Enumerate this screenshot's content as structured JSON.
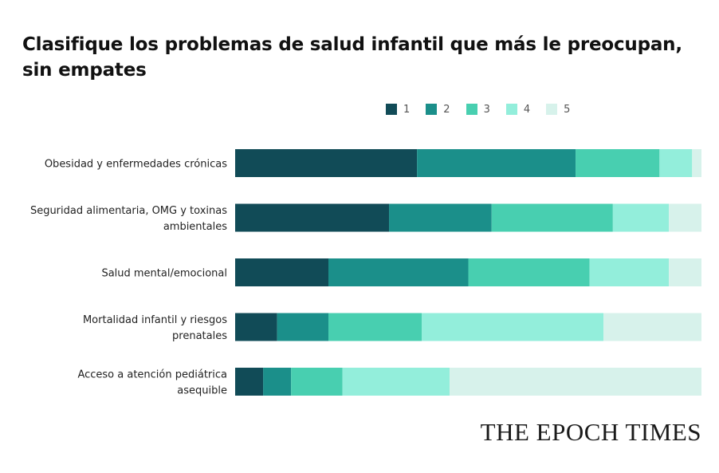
{
  "chart_data": {
    "type": "bar",
    "orientation": "horizontal",
    "stacked": true,
    "title": "Clasifique los problemas de salud infantil que más le preocupan, sin empates",
    "xlabel": "",
    "ylabel": "",
    "xlim": [
      0,
      100
    ],
    "grid": false,
    "legend_position": "top",
    "categories": [
      [
        "Obesidad y enfermedades crónicas"
      ],
      [
        "Seguridad alimentaria, OMG y toxinas",
        "ambientales"
      ],
      [
        "Salud mental/emocional"
      ],
      [
        "Mortalidad infantil y riesgos",
        "prenatales"
      ],
      [
        "Acceso a atención pediátrica",
        "asequible"
      ]
    ],
    "series": [
      {
        "name": "1",
        "color": "#114b57",
        "values": [
          39,
          33,
          20,
          9,
          6
        ]
      },
      {
        "name": "2",
        "color": "#1b8f8a",
        "values": [
          34,
          22,
          30,
          11,
          6
        ]
      },
      {
        "name": "3",
        "color": "#48cfb0",
        "values": [
          18,
          26,
          26,
          20,
          11
        ]
      },
      {
        "name": "4",
        "color": "#93eedb",
        "values": [
          7,
          12,
          17,
          39,
          23
        ]
      },
      {
        "name": "5",
        "color": "#d7f2eb",
        "values": [
          2,
          7,
          7,
          21,
          54
        ]
      }
    ]
  },
  "brand": "THE EPOCH TIMES"
}
